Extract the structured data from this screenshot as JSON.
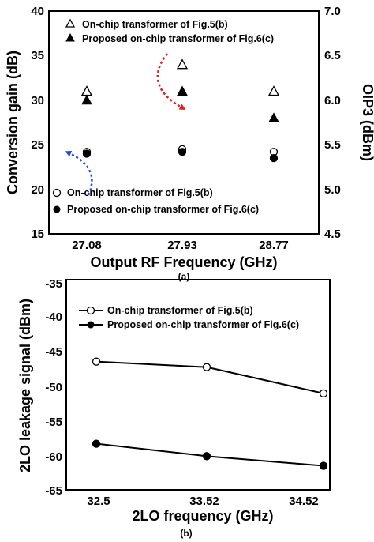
{
  "chart_data": [
    {
      "type": "scatter",
      "panel_label": "(a)",
      "xlabel": "Output RF Frequency (GHz)",
      "ylabel": "Conversion gain (dB)",
      "ylabel_right": "OIP3 (dBm)",
      "categories": [
        "27.08",
        "27.93",
        "28.77"
      ],
      "ylim": [
        15,
        40
      ],
      "yticks": [
        "15",
        "20",
        "25",
        "30",
        "35",
        "40"
      ],
      "ylim_right": [
        4.5,
        7.0
      ],
      "yticks_right": [
        "4.5",
        "5.0",
        "5.5",
        "6.0",
        "6.5",
        "7.0"
      ],
      "series": [
        {
          "name": "On-chip transformer of Fig.5(b)",
          "axis": "left",
          "marker": "triangle-open",
          "values": [
            31.0,
            34.0,
            31.0
          ]
        },
        {
          "name": "Proposed on-chip transformer of Fig.6(c)",
          "axis": "left",
          "marker": "triangle-filled",
          "values": [
            30.0,
            31.0,
            28.0
          ]
        },
        {
          "name": "On-chip transformer of Fig.5(b)",
          "axis": "right",
          "marker": "circle-open",
          "values": [
            5.42,
            5.45,
            5.42
          ]
        },
        {
          "name": "Proposed on-chip transformer of Fig.6(c)",
          "axis": "right",
          "marker": "circle-filled",
          "values": [
            5.4,
            5.42,
            5.35
          ]
        }
      ],
      "annotations": [
        {
          "type": "arrow",
          "color": "#1f4fd8",
          "meaning": "points toward left axis"
        },
        {
          "type": "arrow",
          "color": "#e02020",
          "meaning": "points toward right axis"
        }
      ],
      "grid": false,
      "legend": "top-right and bottom-center"
    },
    {
      "type": "line",
      "panel_label": "(b)",
      "xlabel": "2LO frequency (GHz)",
      "ylabel": "2LO leakage signal (dBm)",
      "categories": [
        "32.5",
        "33.52",
        "34.52"
      ],
      "ylim": [
        -65,
        -35
      ],
      "yticks": [
        "-35",
        "-40",
        "-45",
        "-50",
        "-55",
        "-60",
        "-65"
      ],
      "series": [
        {
          "name": "On-chip transformer of Fig.5(b)",
          "marker": "circle-open",
          "values": [
            -46.3,
            -47.1,
            -50.9
          ]
        },
        {
          "name": "Proposed on-chip transformer of Fig.6(c)",
          "marker": "circle-filled",
          "values": [
            -58.2,
            -60.0,
            -61.4
          ]
        }
      ],
      "grid": false,
      "legend": "top-left"
    }
  ]
}
